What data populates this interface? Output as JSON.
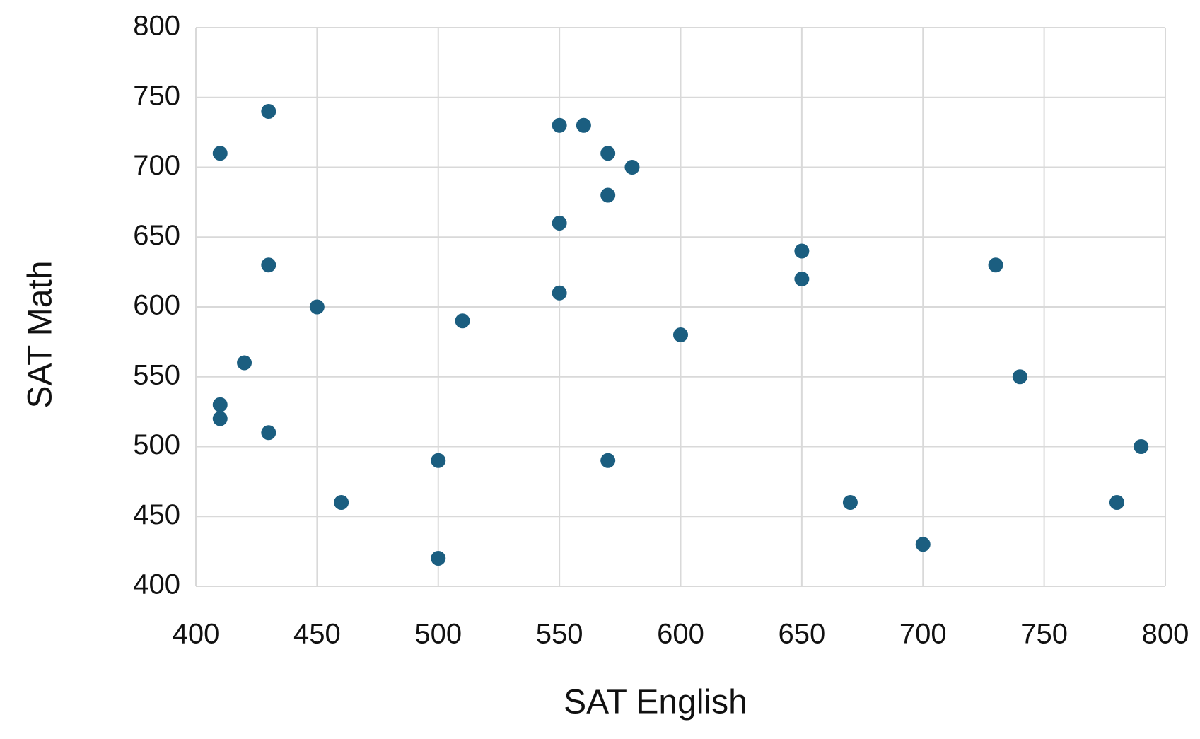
{
  "chart_data": {
    "type": "scatter",
    "x_label": "SAT English",
    "y_label": "SAT Math",
    "x": [
      430,
      410,
      550,
      560,
      570,
      580,
      570,
      550,
      650,
      430,
      730,
      650,
      550,
      450,
      510,
      600,
      420,
      740,
      410,
      410,
      430,
      790,
      500,
      570,
      460,
      670,
      780,
      700,
      500
    ],
    "values": [
      740,
      710,
      730,
      730,
      710,
      700,
      680,
      660,
      640,
      630,
      630,
      620,
      610,
      600,
      590,
      580,
      560,
      550,
      530,
      520,
      510,
      500,
      490,
      490,
      460,
      460,
      460,
      430,
      420
    ],
    "color": "#1b5e80",
    "xlim": [
      400,
      800
    ],
    "ylim": [
      400,
      800
    ],
    "xticks": [
      400,
      450,
      500,
      550,
      600,
      650,
      700,
      750,
      800
    ],
    "yticks": [
      400,
      450,
      500,
      550,
      600,
      650,
      700,
      750,
      800
    ],
    "grid": true
  }
}
